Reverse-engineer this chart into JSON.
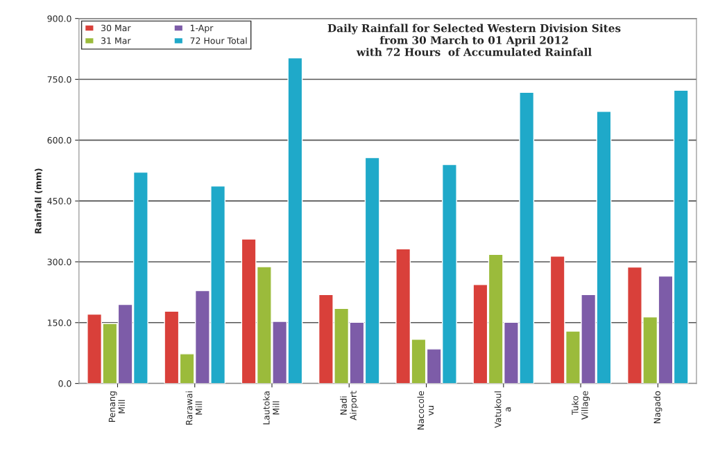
{
  "chart_data": {
    "type": "bar",
    "title": "Daily Rainfall for Selected Western Division Sites\nfrom 30 March to 01 April 2012\nwith 72 Hours  of Accumulated Rainfall",
    "ylabel": "Rainfall (mm)",
    "categories": [
      "Penang\nMill",
      "Rarawai\nMill",
      "Lautoka\nMill",
      "Nadi\nAirport",
      "Nacocole\nvu",
      "Vatukoul\na",
      "Tuko\nVillage",
      "Nagado"
    ],
    "series": [
      {
        "name": "30 Mar",
        "color": "#d9403a",
        "values": [
          171,
          178,
          356,
          219,
          332,
          244,
          314,
          287
        ]
      },
      {
        "name": "31 Mar",
        "color": "#9bbb3b",
        "values": [
          148,
          73,
          288,
          185,
          109,
          318,
          129,
          164
        ]
      },
      {
        "name": "1-Apr",
        "color": "#7d5ca8",
        "values": [
          195,
          229,
          153,
          151,
          85,
          151,
          219,
          265
        ]
      },
      {
        "name": "72 Hour Total",
        "color": "#1fa9c9",
        "values": [
          521,
          487,
          803,
          557,
          540,
          718,
          671,
          723
        ]
      }
    ],
    "ylim": [
      0,
      900
    ],
    "yticks": [
      {
        "value": 0,
        "label": "0.0"
      },
      {
        "value": 150,
        "label": "150.0"
      },
      {
        "value": 300,
        "label": "300.0"
      },
      {
        "value": 450,
        "label": "450.0"
      },
      {
        "value": 600,
        "label": "600.0"
      },
      {
        "value": 750,
        "label": "750.0"
      },
      {
        "value": 900,
        "label": "900.0"
      }
    ],
    "grid": "y",
    "legend": "top left"
  }
}
